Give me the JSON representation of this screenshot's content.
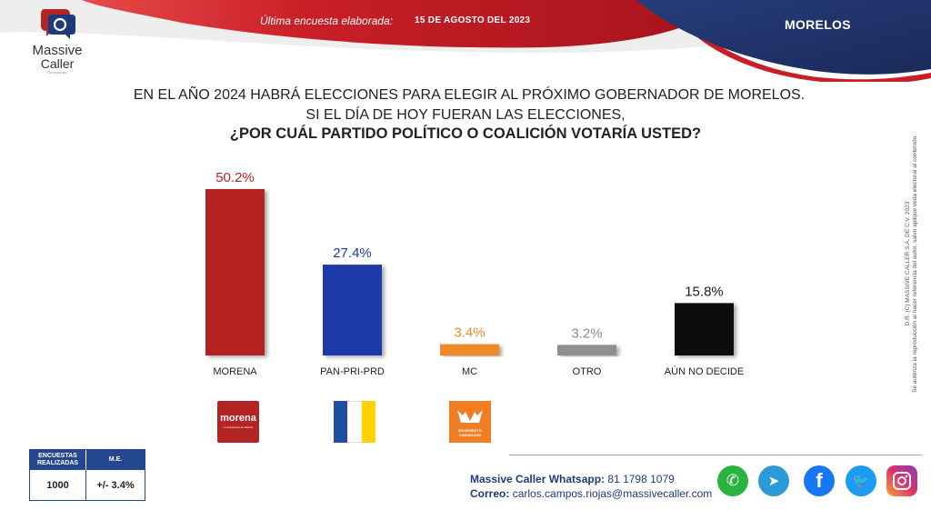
{
  "brand": {
    "name": "Massive",
    "name2": "Caller",
    "tagline": "Encuestas"
  },
  "header": {
    "last_survey_label": "Última encuesta elaborada:",
    "date": "15 DE AGOSTO DEL 2023",
    "state": "MORELOS"
  },
  "question": {
    "line1": "EN EL AÑO 2024 HABRÁ ELECCIONES PARA ELEGIR AL PRÓXIMO GOBERNADOR DE MORELOS.",
    "line2": "SI EL DÍA DE HOY FUERAN LAS ELECCIONES,",
    "line3": "¿POR CUÁL PARTIDO POLÍTICO O COALICIÓN VOTARÍA USTED?"
  },
  "chart_data": {
    "type": "bar",
    "categories": [
      "MORENA",
      "PAN-PRI-PRD",
      "MC",
      "OTRO",
      "AÚN NO DECIDE"
    ],
    "values": [
      50.2,
      27.4,
      3.4,
      3.2,
      15.8
    ],
    "value_labels": [
      "50.2%",
      "27.4%",
      "3.4%",
      "3.2%",
      "15.8%"
    ],
    "colors": [
      "#b52424",
      "#1e3aa8",
      "#f08a25",
      "#8f8f8f",
      "#0a0a0a"
    ],
    "label_colors": [
      "#b52424",
      "#1e3aa8",
      "#f08a25",
      "#8a8a8a",
      "#1a1a1a"
    ],
    "ylim": [
      0,
      50.2
    ],
    "grid": false,
    "legend": "none"
  },
  "party_logos": {
    "morena": {
      "text": "morena",
      "subtext": "La esperanza de México"
    },
    "coalition_colors": [
      "#1e4fa0",
      "#ffffff",
      "#ffd200"
    ],
    "mc": {
      "text": "MOVIMIENTO CIUDADANO"
    }
  },
  "stats": {
    "col1_header": "ENCUESTAS REALIZADAS",
    "col2_header": "M.E.",
    "surveys": "1000",
    "margin": "+/- 3.4%"
  },
  "copyright": {
    "line1": "D.R. (C) MASSIVE CALLER S.A. DE C.V. 2023",
    "line2": "Se autoriza la reproducción al hacer referencia del autor, salvo aplique veda electoral al contenido."
  },
  "contact": {
    "whatsapp_label": "Massive Caller Whatsapp:",
    "whatsapp_number": "81 1798 1079",
    "email_label": "Correo:",
    "email": "carlos.campos.riojas@massivecaller.com"
  },
  "social": {
    "whatsapp_icon": "whatsapp-icon",
    "telegram_icon": "telegram-icon",
    "facebook_icon": "facebook-icon",
    "twitter_icon": "twitter-icon",
    "instagram_icon": "instagram-icon"
  }
}
